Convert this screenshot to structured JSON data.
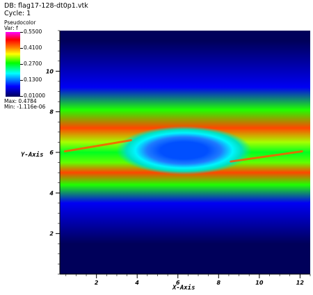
{
  "header": {
    "db_label": "DB: flag17-128-dt0p1.vtk",
    "cycle_label": "Cycle: 1"
  },
  "legend": {
    "title": "Pseudocolor",
    "var_label": "Var: f",
    "ticks": [
      "0.5500",
      "0.4100",
      "0.2700",
      "0.1300",
      "0.01000"
    ],
    "max_label": "Max: 0.4784",
    "min_label": "Min: -1.116e-06",
    "colormap": [
      "#00005a",
      "#0000ff",
      "#00ffff",
      "#00ff00",
      "#ffff00",
      "#ff8000",
      "#ff0000",
      "#ff00ff"
    ]
  },
  "chart_data": {
    "type": "heatmap",
    "title": "",
    "xlabel": "X-Axis",
    "ylabel": "Y-Axis",
    "x_ticks": [
      "2",
      "4",
      "6",
      "8",
      "10",
      "12"
    ],
    "y_ticks": [
      "2",
      "4",
      "6",
      "8",
      "10"
    ],
    "xlim": [
      0.2,
      12.5
    ],
    "ylim": [
      0,
      12
    ],
    "value_range": [
      0.01,
      0.55
    ],
    "data_max": 0.4784,
    "data_min": -1.116e-06,
    "field_bands": [
      {
        "y": 1.5,
        "value": 0.01
      },
      {
        "y": 3.5,
        "value": 0.09
      },
      {
        "y": 4.4,
        "value": 0.3
      },
      {
        "y": 5.0,
        "value": 0.45
      },
      {
        "y": 5.5,
        "value": 0.32
      },
      {
        "y": 6.0,
        "value": 0.28
      },
      {
        "y": 6.5,
        "value": 0.34
      },
      {
        "y": 7.2,
        "value": 0.45
      },
      {
        "y": 8.1,
        "value": 0.3
      },
      {
        "y": 9.2,
        "value": 0.09
      },
      {
        "y": 11.5,
        "value": 0.01
      }
    ],
    "vortex": {
      "center_x": 6.3,
      "center_y": 6.1,
      "core_value": 0.13,
      "ring_value": 0.2
    }
  }
}
